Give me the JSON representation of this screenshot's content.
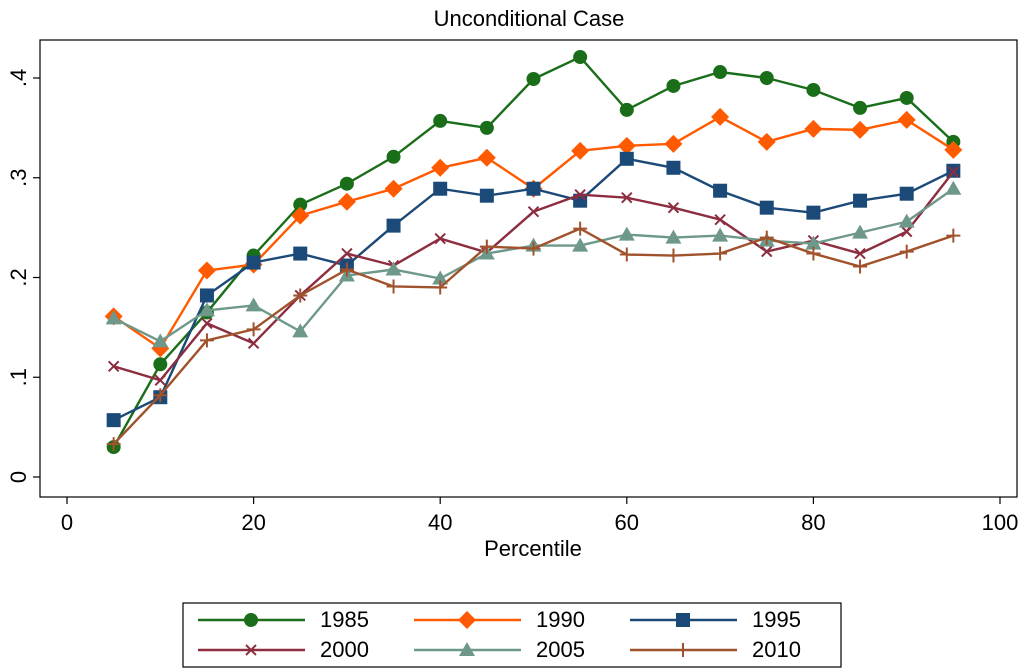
{
  "chart_data": {
    "type": "line",
    "title": "Unconditional Case",
    "x_label": "Percentile",
    "x": [
      5,
      10,
      15,
      20,
      25,
      30,
      35,
      40,
      45,
      50,
      55,
      60,
      65,
      70,
      75,
      80,
      85,
      90,
      95
    ],
    "xlim": [
      0,
      100
    ],
    "xticks": [
      0,
      20,
      40,
      60,
      80,
      100
    ],
    "ylim": [
      0,
      0.4
    ],
    "yticks": [
      0,
      {
        "value": 0.1,
        "label": ".1"
      },
      {
        "value": 0.2,
        "label": ".2"
      },
      {
        "value": 0.3,
        "label": ".3"
      },
      {
        "value": 0.4,
        "label": ".4"
      }
    ],
    "grid": false,
    "legend": "bottom",
    "series": [
      {
        "name": "1985",
        "color": "#1a6e1a",
        "marker": "circle",
        "values": [
          0.03,
          0.113,
          0.165,
          0.222,
          0.273,
          0.294,
          0.321,
          0.357,
          0.35,
          0.399,
          0.421,
          0.368,
          0.392,
          0.406,
          0.4,
          0.388,
          0.37,
          0.38,
          0.336
        ]
      },
      {
        "name": "1990",
        "color": "#ff5a00",
        "marker": "diamond",
        "values": [
          0.161,
          0.129,
          0.207,
          0.213,
          0.262,
          0.276,
          0.289,
          0.31,
          0.32,
          0.289,
          0.327,
          0.332,
          0.334,
          0.361,
          0.336,
          0.349,
          0.348,
          0.358,
          0.328
        ]
      },
      {
        "name": "1995",
        "color": "#1c4a78",
        "marker": "square",
        "values": [
          0.057,
          0.08,
          0.182,
          0.215,
          0.224,
          0.212,
          0.252,
          0.289,
          0.282,
          0.289,
          0.277,
          0.319,
          0.31,
          0.287,
          0.27,
          0.265,
          0.277,
          0.284,
          0.307
        ]
      },
      {
        "name": "2000",
        "color": "#8c2d40",
        "marker": "x",
        "values": [
          0.111,
          0.097,
          0.154,
          0.134,
          0.182,
          0.224,
          0.212,
          0.239,
          0.225,
          0.266,
          0.283,
          0.28,
          0.27,
          0.258,
          0.226,
          0.237,
          0.224,
          0.246,
          0.306
        ]
      },
      {
        "name": "2005",
        "color": "#6e998a",
        "marker": "triangle",
        "values": [
          0.159,
          0.136,
          0.167,
          0.172,
          0.146,
          0.202,
          0.208,
          0.199,
          0.224,
          0.232,
          0.232,
          0.243,
          0.24,
          0.242,
          0.237,
          0.234,
          0.245,
          0.256,
          0.289
        ]
      },
      {
        "name": "2010",
        "color": "#a0522d",
        "marker": "plus",
        "values": [
          0.033,
          0.082,
          0.137,
          0.148,
          0.182,
          0.208,
          0.191,
          0.19,
          0.231,
          0.229,
          0.249,
          0.223,
          0.222,
          0.224,
          0.24,
          0.224,
          0.211,
          0.226,
          0.242
        ]
      }
    ]
  }
}
